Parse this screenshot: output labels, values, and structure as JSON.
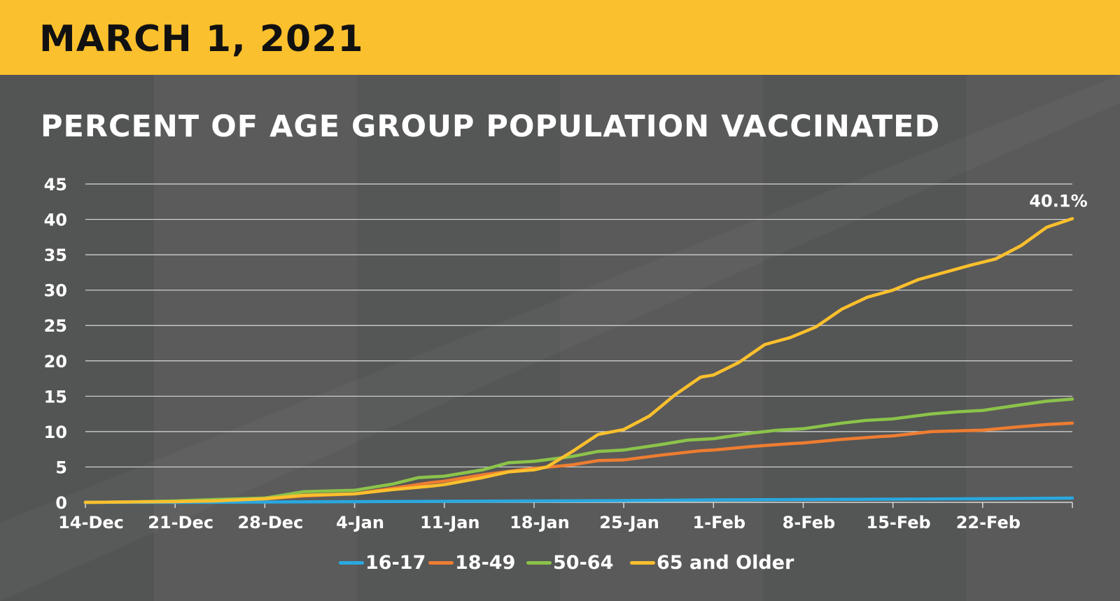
{
  "header": {
    "date": "MARCH 1, 2021"
  },
  "colors": {
    "header_bg": "#fbc02d",
    "gridline": "#d9d9d9",
    "s1617": "#29a8e0",
    "s1849": "#ee7d31",
    "s5064": "#8bc34a",
    "s65": "#fbc02d"
  },
  "chart_data": {
    "type": "line",
    "title": "PERCENT OF AGE GROUP POPULATION VACCINATED",
    "xlabel": "",
    "ylabel": "",
    "ylim": [
      0,
      45
    ],
    "y_ticks": [
      "0",
      "5",
      "10",
      "15",
      "20",
      "25",
      "30",
      "35",
      "40",
      "45"
    ],
    "x_range": [
      "2020-12-14",
      "2021-03-01"
    ],
    "x_ticks": [
      {
        "date": "2020-12-14",
        "label": "14-Dec"
      },
      {
        "date": "2020-12-21",
        "label": "21-Dec"
      },
      {
        "date": "2020-12-28",
        "label": "28-Dec"
      },
      {
        "date": "2021-01-04",
        "label": "4-Jan"
      },
      {
        "date": "2021-01-11",
        "label": "11-Jan"
      },
      {
        "date": "2021-01-18",
        "label": "18-Jan"
      },
      {
        "date": "2021-01-25",
        "label": "25-Jan"
      },
      {
        "date": "2021-02-01",
        "label": "1-Feb"
      },
      {
        "date": "2021-02-08",
        "label": "8-Feb"
      },
      {
        "date": "2021-02-15",
        "label": "15-Feb"
      },
      {
        "date": "2021-02-22",
        "label": "22-Feb"
      }
    ],
    "grid": true,
    "legend": "bottom",
    "series": [
      {
        "name": "16-17",
        "color": "#29a8e0",
        "points": [
          [
            "2020-12-14",
            0
          ],
          [
            "2020-12-21",
            0
          ],
          [
            "2020-12-28",
            0.05
          ],
          [
            "2021-01-04",
            0.1
          ],
          [
            "2021-01-11",
            0.15
          ],
          [
            "2021-01-18",
            0.2
          ],
          [
            "2021-01-25",
            0.25
          ],
          [
            "2021-02-01",
            0.35
          ],
          [
            "2021-02-08",
            0.4
          ],
          [
            "2021-02-15",
            0.45
          ],
          [
            "2021-02-22",
            0.5
          ],
          [
            "2021-03-01",
            0.6
          ]
        ]
      },
      {
        "name": "18-49",
        "color": "#ee7d31",
        "points": [
          [
            "2020-12-14",
            0
          ],
          [
            "2020-12-17",
            0.05
          ],
          [
            "2020-12-21",
            0.15
          ],
          [
            "2020-12-24",
            0.3
          ],
          [
            "2020-12-28",
            0.5
          ],
          [
            "2020-12-31",
            0.9
          ],
          [
            "2021-01-04",
            1.2
          ],
          [
            "2021-01-07",
            2.0
          ],
          [
            "2021-01-10",
            2.8
          ],
          [
            "2021-01-11",
            3.0
          ],
          [
            "2021-01-14",
            3.9
          ],
          [
            "2021-01-17",
            4.6
          ],
          [
            "2021-01-18",
            4.8
          ],
          [
            "2021-01-21",
            5.3
          ],
          [
            "2021-01-23",
            5.9
          ],
          [
            "2021-01-25",
            6.0
          ],
          [
            "2021-01-28",
            6.7
          ],
          [
            "2021-01-31",
            7.3
          ],
          [
            "2021-02-01",
            7.4
          ],
          [
            "2021-02-04",
            7.9
          ],
          [
            "2021-02-07",
            8.3
          ],
          [
            "2021-02-08",
            8.4
          ],
          [
            "2021-02-11",
            8.9
          ],
          [
            "2021-02-14",
            9.3
          ],
          [
            "2021-02-15",
            9.4
          ],
          [
            "2021-02-18",
            10.0
          ],
          [
            "2021-02-22",
            10.2
          ],
          [
            "2021-02-25",
            10.7
          ],
          [
            "2021-02-27",
            11.0
          ],
          [
            "2021-03-01",
            11.2
          ]
        ]
      },
      {
        "name": "50-64",
        "color": "#8bc34a",
        "points": [
          [
            "2020-12-14",
            0
          ],
          [
            "2020-12-17",
            0.05
          ],
          [
            "2020-12-21",
            0.2
          ],
          [
            "2020-12-24",
            0.4
          ],
          [
            "2020-12-28",
            0.6
          ],
          [
            "2020-12-31",
            1.5
          ],
          [
            "2021-01-04",
            1.7
          ],
          [
            "2021-01-07",
            2.6
          ],
          [
            "2021-01-09",
            3.5
          ],
          [
            "2021-01-11",
            3.7
          ],
          [
            "2021-01-14",
            4.6
          ],
          [
            "2021-01-16",
            5.6
          ],
          [
            "2021-01-18",
            5.8
          ],
          [
            "2021-01-21",
            6.5
          ],
          [
            "2021-01-23",
            7.2
          ],
          [
            "2021-01-25",
            7.4
          ],
          [
            "2021-01-28",
            8.2
          ],
          [
            "2021-01-30",
            8.8
          ],
          [
            "2021-02-01",
            9.0
          ],
          [
            "2021-02-04",
            9.8
          ],
          [
            "2021-02-06",
            10.2
          ],
          [
            "2021-02-08",
            10.4
          ],
          [
            "2021-02-11",
            11.2
          ],
          [
            "2021-02-13",
            11.6
          ],
          [
            "2021-02-15",
            11.8
          ],
          [
            "2021-02-18",
            12.5
          ],
          [
            "2021-02-20",
            12.8
          ],
          [
            "2021-02-22",
            13.0
          ],
          [
            "2021-02-25",
            13.8
          ],
          [
            "2021-02-27",
            14.3
          ],
          [
            "2021-03-01",
            14.6
          ]
        ]
      },
      {
        "name": "65 and Older",
        "color": "#fbc02d",
        "points": [
          [
            "2020-12-14",
            0
          ],
          [
            "2020-12-17",
            0.05
          ],
          [
            "2020-12-21",
            0.1
          ],
          [
            "2020-12-24",
            0.2
          ],
          [
            "2020-12-28",
            0.5
          ],
          [
            "2020-12-31",
            1.0
          ],
          [
            "2021-01-04",
            1.2
          ],
          [
            "2021-01-07",
            1.8
          ],
          [
            "2021-01-10",
            2.3
          ],
          [
            "2021-01-11",
            2.5
          ],
          [
            "2021-01-14",
            3.5
          ],
          [
            "2021-01-16",
            4.3
          ],
          [
            "2021-01-18",
            4.6
          ],
          [
            "2021-01-19",
            5.0
          ],
          [
            "2021-01-21",
            7.2
          ],
          [
            "2021-01-23",
            9.6
          ],
          [
            "2021-01-25",
            10.3
          ],
          [
            "2021-01-27",
            12.2
          ],
          [
            "2021-01-29",
            15.2
          ],
          [
            "2021-01-31",
            17.7
          ],
          [
            "2021-02-01",
            18.0
          ],
          [
            "2021-02-03",
            19.8
          ],
          [
            "2021-02-05",
            22.3
          ],
          [
            "2021-02-07",
            23.3
          ],
          [
            "2021-02-09",
            24.8
          ],
          [
            "2021-02-11",
            27.3
          ],
          [
            "2021-02-13",
            29.0
          ],
          [
            "2021-02-15",
            30.0
          ],
          [
            "2021-02-17",
            31.5
          ],
          [
            "2021-02-19",
            32.5
          ],
          [
            "2021-02-21",
            33.5
          ],
          [
            "2021-02-23",
            34.4
          ],
          [
            "2021-02-25",
            36.3
          ],
          [
            "2021-02-27",
            38.9
          ],
          [
            "2021-03-01",
            40.1
          ]
        ]
      }
    ],
    "annotations": [
      {
        "series": "65 and Older",
        "date": "2021-03-01",
        "text": "40.1%"
      }
    ]
  }
}
